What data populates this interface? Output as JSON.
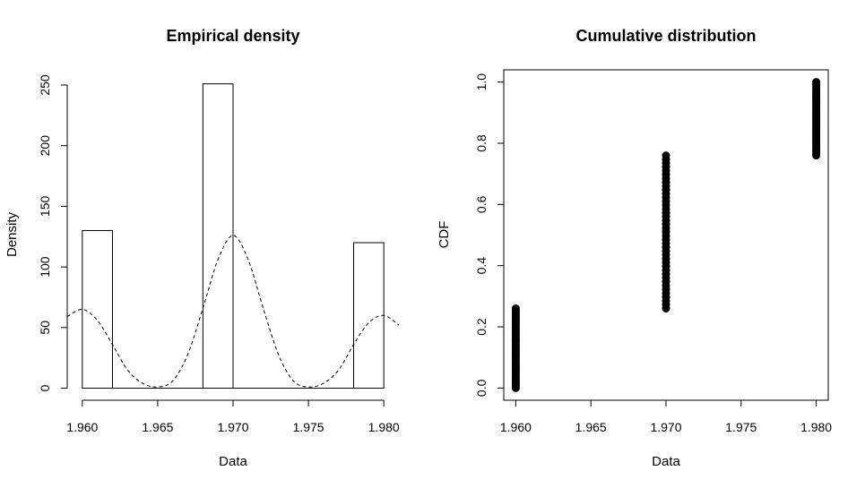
{
  "chart_data": [
    {
      "type": "bar",
      "title": "Empirical density",
      "xlabel": "Data",
      "ylabel": "Density",
      "xlim": [
        1.959,
        1.981
      ],
      "ylim": [
        0,
        250
      ],
      "xticks": [
        1.96,
        1.965,
        1.97,
        1.975,
        1.98
      ],
      "xtick_labels": [
        "1.960",
        "1.965",
        "1.970",
        "1.975",
        "1.980"
      ],
      "yticks": [
        0,
        50,
        100,
        150,
        200,
        250
      ],
      "ytick_labels": [
        "0",
        "50",
        "100",
        "150",
        "200",
        "250"
      ],
      "bins": [
        {
          "x0": 1.96,
          "x1": 1.962,
          "value": 130
        },
        {
          "x0": 1.962,
          "x1": 1.964,
          "value": 0
        },
        {
          "x0": 1.964,
          "x1": 1.966,
          "value": 0
        },
        {
          "x0": 1.966,
          "x1": 1.968,
          "value": 0
        },
        {
          "x0": 1.968,
          "x1": 1.97,
          "value": 251
        },
        {
          "x0": 1.97,
          "x1": 1.972,
          "value": 0
        },
        {
          "x0": 1.972,
          "x1": 1.974,
          "value": 0
        },
        {
          "x0": 1.974,
          "x1": 1.976,
          "value": 0
        },
        {
          "x0": 1.976,
          "x1": 1.978,
          "value": 0
        },
        {
          "x0": 1.978,
          "x1": 1.98,
          "value": 120
        }
      ],
      "density_curve": {
        "style": "dashed",
        "x": [
          1.959,
          1.96,
          1.961,
          1.962,
          1.963,
          1.964,
          1.965,
          1.966,
          1.967,
          1.968,
          1.969,
          1.97,
          1.971,
          1.972,
          1.973,
          1.974,
          1.975,
          1.976,
          1.977,
          1.978,
          1.979,
          1.98,
          1.981
        ],
        "y": [
          59,
          65,
          56,
          36,
          15,
          4,
          1,
          6,
          28,
          66,
          106,
          126,
          106,
          66,
          28,
          6,
          1,
          4,
          15,
          36,
          54,
          60,
          52
        ]
      },
      "grid": false
    },
    {
      "type": "scatter",
      "title": "Cumulative distribution",
      "xlabel": "Data",
      "ylabel": "CDF",
      "xlim": [
        1.9592,
        1.9808
      ],
      "ylim": [
        -0.04,
        1.04
      ],
      "xticks": [
        1.96,
        1.965,
        1.97,
        1.975,
        1.98
      ],
      "xtick_labels": [
        "1.960",
        "1.965",
        "1.970",
        "1.975",
        "1.980"
      ],
      "yticks": [
        0.0,
        0.2,
        0.4,
        0.6,
        0.8,
        1.0
      ],
      "ytick_labels": [
        "0.0",
        "0.2",
        "0.4",
        "0.6",
        "0.8",
        "1.0"
      ],
      "steps": [
        {
          "x": 1.96,
          "cdf_from": 0.0,
          "cdf_to": 0.26
        },
        {
          "x": 1.97,
          "cdf_from": 0.26,
          "cdf_to": 0.76
        },
        {
          "x": 1.98,
          "cdf_from": 0.76,
          "cdf_to": 1.0
        }
      ],
      "points_per_step": 40,
      "grid": false
    }
  ]
}
